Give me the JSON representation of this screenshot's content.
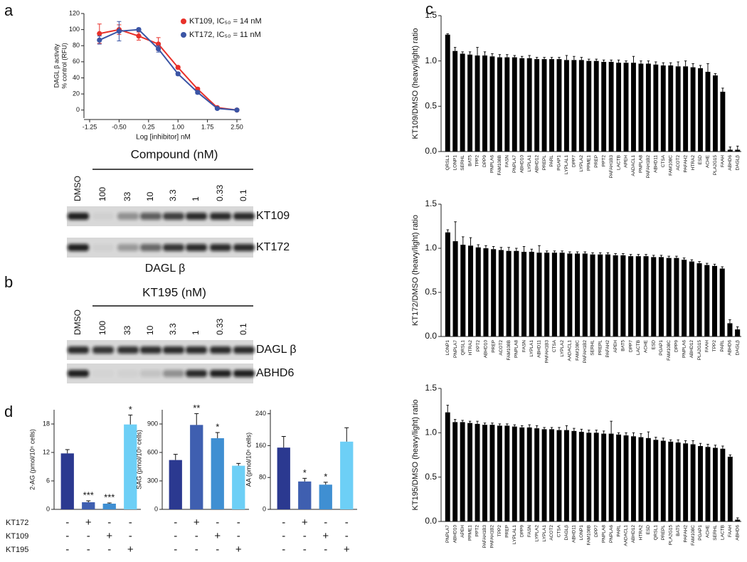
{
  "panel_labels": [
    "a",
    "b",
    "c",
    "d"
  ],
  "gels": [
    {
      "title": "Compound (nM)",
      "lanes": [
        "DMSO",
        "100",
        "33",
        "10",
        "3.3",
        "1",
        "0.33",
        "0.1"
      ],
      "rows": [
        "KT109",
        "KT172"
      ],
      "caption": "DAGL β"
    },
    {
      "title": "KT195 (nM)",
      "lanes": [
        "DMSO",
        "100",
        "33",
        "10",
        "3.3",
        "1",
        "0.33",
        "0.1"
      ],
      "rows": [
        "DAGL β",
        "ABHD6"
      ]
    }
  ],
  "panel_d_treatments": {
    "names": [
      "KT172",
      "KT109",
      "KT195"
    ],
    "signs": [
      [
        "-",
        "+",
        "-",
        "-"
      ],
      [
        "-",
        "-",
        "+",
        "-"
      ],
      [
        "-",
        "-",
        "-",
        "+"
      ]
    ]
  },
  "chart_data": [
    {
      "type": "line",
      "xlabel": "Log [inhibitor] nM",
      "ylabel": [
        "DAGL β activity",
        "% control (RFU)"
      ],
      "x": [
        -1,
        -0.5,
        0,
        0.5,
        1,
        1.5,
        2,
        2.5
      ],
      "xlim": [
        -1.25,
        2.5
      ],
      "xticks": [
        -1.25,
        {
          "value": -0.5,
          "label": "-0.50"
        },
        0.25,
        {
          "value": 1,
          "label": "1.00"
        },
        1.75,
        {
          "value": 2.5,
          "label": "2.50"
        }
      ],
      "ylim": [
        -10,
        120
      ],
      "yticks": [
        0,
        20,
        40,
        60,
        80,
        100,
        120
      ],
      "series": [
        {
          "name": "KT109, IC₅₀ = 14 nM",
          "color": "#e8312a",
          "values": [
            95,
            100,
            92,
            82,
            53,
            26,
            3,
            0
          ],
          "errors": [
            12,
            6,
            5,
            8,
            2,
            2,
            1,
            1
          ]
        },
        {
          "name": "KT172, IC₅₀ = 11 nM",
          "color": "#3b55a5",
          "values": [
            87,
            98,
            100,
            76,
            45,
            22,
            2,
            0
          ],
          "errors": [
            5,
            12,
            2,
            4,
            2,
            2,
            1,
            1
          ]
        }
      ]
    },
    {
      "type": "bar",
      "ylabel": "2-AG (pmol/10⁶ cells)",
      "categories": [
        null,
        null,
        null,
        null
      ],
      "values": [
        11.8,
        1.5,
        1.2,
        17.9
      ],
      "errors": [
        0.8,
        0.3,
        0.15,
        2.0
      ],
      "annotations": [
        null,
        "***",
        "***",
        "*"
      ],
      "colors": [
        "#2b3990",
        "#3f5fb0",
        "#3f8fd2",
        "#6dcff6"
      ],
      "ylim": [
        0,
        21
      ],
      "yticks": [
        0,
        6,
        12,
        18
      ]
    },
    {
      "type": "bar",
      "ylabel": "SAG (pmol/10⁶ cells)",
      "categories": [
        null,
        null,
        null,
        null
      ],
      "values": [
        520,
        890,
        750,
        460
      ],
      "errors": [
        60,
        120,
        60,
        25
      ],
      "annotations": [
        null,
        "**",
        "*",
        null
      ],
      "colors": [
        "#2b3990",
        "#3f5fb0",
        "#3f8fd2",
        "#6dcff6"
      ],
      "ylim": [
        0,
        1050
      ],
      "yticks": [
        0,
        300,
        600,
        900
      ]
    },
    {
      "type": "bar",
      "ylabel": "AA (pmol/10⁶ cells)",
      "categories": [
        null,
        null,
        null,
        null
      ],
      "values": [
        155,
        70,
        62,
        170
      ],
      "errors": [
        28,
        8,
        6,
        35
      ],
      "annotations": [
        null,
        "*",
        "*",
        null
      ],
      "colors": [
        "#2b3990",
        "#3f5fb0",
        "#3f8fd2",
        "#6dcff6"
      ],
      "ylim": [
        0,
        250
      ],
      "yticks": [
        0,
        80,
        160,
        240
      ]
    },
    {
      "type": "bar",
      "ylabel": "KT109/DMSO (heavy/light) ratio",
      "color": "#000000",
      "categories": [
        "QRSL1",
        "LONP1",
        "SERHL",
        "BAT5",
        "TPP2",
        "DPP9",
        "PNPLA6",
        "FAM108B",
        "FASN",
        "PNPLA7",
        "ABHD10",
        "LYPLA1",
        "ABHD12",
        "PREPL",
        "PARL",
        "PGAP1",
        "LYPLAL1",
        "DPP7",
        "LYPLA2",
        "PPME1",
        "PREP",
        "PPT2",
        "PAFAH1B3",
        "LACTB",
        "APEH",
        "AADACL1",
        "PNPLA8",
        "PAFAH1B2",
        "ABHD11",
        "CTSA",
        "FAM108C",
        "ACOT2",
        "PAFAH2",
        "HTRA2",
        "ESD",
        "ACHE",
        "PLA2G15",
        "FAAH",
        "ABHD6",
        "DAGLβ"
      ],
      "values": [
        1.29,
        1.11,
        1.08,
        1.07,
        1.06,
        1.06,
        1.05,
        1.04,
        1.04,
        1.04,
        1.03,
        1.03,
        1.02,
        1.02,
        1.02,
        1.02,
        1.01,
        1.01,
        1.01,
        1.0,
        1.0,
        0.99,
        0.99,
        0.98,
        0.98,
        0.98,
        0.97,
        0.97,
        0.96,
        0.95,
        0.95,
        0.94,
        0.94,
        0.93,
        0.92,
        0.88,
        0.84,
        0.66,
        0.02,
        0.02
      ],
      "errors": [
        0.01,
        0.04,
        0.02,
        0.03,
        0.09,
        0.04,
        0.03,
        0.03,
        0.03,
        0.02,
        0.02,
        0.03,
        0.02,
        0.02,
        0.02,
        0.02,
        0.05,
        0.04,
        0.03,
        0.02,
        0.02,
        0.02,
        0.02,
        0.03,
        0.02,
        0.07,
        0.03,
        0.03,
        0.03,
        0.03,
        0.03,
        0.05,
        0.06,
        0.04,
        0.03,
        0.09,
        0.02,
        0.04,
        0.03,
        0.04
      ],
      "ylim": [
        0,
        1.5
      ],
      "yticks": [
        {
          "value": 0,
          "label": "0.0"
        },
        0.5,
        {
          "value": 1,
          "label": "1.0"
        },
        1.5
      ]
    },
    {
      "type": "bar",
      "ylabel": "KT172/DMSO (heavy/light) ratio",
      "color": "#000000",
      "categories": [
        "LONP1",
        "PNPLA7",
        "QRSL1",
        "HTRA2",
        "PPT2",
        "ABHD10",
        "PREP",
        "ACOT2",
        "FAM108B",
        "PNPLA8",
        "FASN",
        "LYPLA1",
        "ABHD11",
        "PAFAH1B3",
        "CTSA",
        "LYPLA2",
        "AADACL1",
        "FAM108C",
        "PAFAH1B2",
        "SERHL",
        "PREPL",
        "PAFAH2",
        "APEH",
        "BAT5",
        "DPP7",
        "LACTB",
        "ACHE",
        "ESD",
        "PGAP1",
        "FAM108C",
        "DPP9",
        "PNPLA6",
        "ABHD12",
        "PLA2G15",
        "FAAH",
        "TPP2",
        "PARL",
        "ABHD6",
        "DAGLβ"
      ],
      "values": [
        1.18,
        1.08,
        1.04,
        1.03,
        1.01,
        1.0,
        0.99,
        0.98,
        0.97,
        0.97,
        0.96,
        0.96,
        0.95,
        0.95,
        0.95,
        0.95,
        0.94,
        0.94,
        0.94,
        0.93,
        0.93,
        0.93,
        0.92,
        0.92,
        0.91,
        0.91,
        0.91,
        0.9,
        0.9,
        0.89,
        0.89,
        0.87,
        0.85,
        0.83,
        0.81,
        0.8,
        0.77,
        0.15,
        0.08
      ],
      "errors": [
        0.03,
        0.22,
        0.09,
        0.09,
        0.03,
        0.03,
        0.03,
        0.03,
        0.04,
        0.03,
        0.06,
        0.03,
        0.08,
        0.02,
        0.02,
        0.02,
        0.02,
        0.02,
        0.02,
        0.02,
        0.02,
        0.02,
        0.02,
        0.02,
        0.02,
        0.02,
        0.02,
        0.02,
        0.02,
        0.02,
        0.02,
        0.02,
        0.02,
        0.02,
        0.02,
        0.02,
        0.02,
        0.04,
        0.03
      ],
      "ylim": [
        0,
        1.5
      ],
      "yticks": [
        {
          "value": 0,
          "label": "0.0"
        },
        0.5,
        {
          "value": 1,
          "label": "1.0"
        },
        1.5
      ]
    },
    {
      "type": "bar",
      "ylabel": "KT195/DMSO (heavy/light) ratio",
      "color": "#000000",
      "categories": [
        "PNPLA7",
        "ABHD10",
        "APEH",
        "PPME1",
        "PPT2",
        "PAFAH1B3",
        "PAFAH1B2",
        "TPP2",
        "PREP",
        "LYPLAL1",
        "DPP9",
        "FASN",
        "LYPLA2",
        "LYPLA1",
        "ACOT2",
        "CTSA",
        "DAGLβ",
        "ABHD11",
        "LONP1",
        "FAM108B",
        "DPP7",
        "PNPLA8",
        "PNPLA6",
        "PARL",
        "AADACL1",
        "ABHD12",
        "HTRA2",
        "ESD",
        "QRSL1",
        "PREPL",
        "PLA2G15",
        "BAT5",
        "PAFAH2",
        "FAM108C",
        "PGAP1",
        "ACHE",
        "SERHL",
        "LACTB",
        "FAAH",
        "ABHD6"
      ],
      "values": [
        1.23,
        1.12,
        1.12,
        1.11,
        1.1,
        1.09,
        1.09,
        1.08,
        1.08,
        1.07,
        1.06,
        1.06,
        1.05,
        1.04,
        1.04,
        1.03,
        1.03,
        1.02,
        1.01,
        1.0,
        1.0,
        0.99,
        0.99,
        0.98,
        0.97,
        0.96,
        0.95,
        0.94,
        0.92,
        0.91,
        0.9,
        0.89,
        0.88,
        0.87,
        0.85,
        0.84,
        0.83,
        0.82,
        0.73,
        0.02
      ],
      "errors": [
        0.08,
        0.03,
        0.02,
        0.02,
        0.03,
        0.02,
        0.02,
        0.02,
        0.02,
        0.02,
        0.02,
        0.03,
        0.03,
        0.02,
        0.02,
        0.03,
        0.05,
        0.03,
        0.03,
        0.03,
        0.03,
        0.03,
        0.14,
        0.02,
        0.03,
        0.04,
        0.04,
        0.07,
        0.03,
        0.03,
        0.02,
        0.03,
        0.03,
        0.04,
        0.03,
        0.03,
        0.03,
        0.03,
        0.02,
        0.02
      ],
      "ylim": [
        0,
        1.5
      ],
      "yticks": [
        {
          "value": 0,
          "label": "0.0"
        },
        0.5,
        {
          "value": 1,
          "label": "1.0"
        },
        1.5
      ]
    }
  ]
}
